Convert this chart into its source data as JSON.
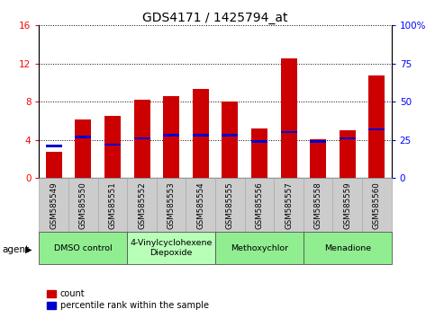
{
  "title": "GDS4171 / 1425794_at",
  "samples": [
    "GSM585549",
    "GSM585550",
    "GSM585551",
    "GSM585552",
    "GSM585553",
    "GSM585554",
    "GSM585555",
    "GSM585556",
    "GSM585557",
    "GSM585558",
    "GSM585559",
    "GSM585560"
  ],
  "count_values": [
    2.8,
    6.1,
    6.5,
    8.2,
    8.6,
    9.3,
    8.0,
    5.2,
    12.5,
    4.1,
    5.0,
    10.8
  ],
  "percentile_values": [
    21,
    27,
    22,
    26,
    28,
    28,
    28,
    24,
    30,
    24,
    26,
    32
  ],
  "ylim_left": [
    0,
    16
  ],
  "ylim_right": [
    0,
    100
  ],
  "yticks_left": [
    0,
    4,
    8,
    12,
    16
  ],
  "yticks_right": [
    0,
    25,
    50,
    75,
    100
  ],
  "ytick_labels_right": [
    "0",
    "25",
    "50",
    "75",
    "100%"
  ],
  "bar_color": "#cc0000",
  "pct_color": "#0000cc",
  "agents": [
    {
      "label": "DMSO control",
      "start": 0,
      "end": 3,
      "color": "#90ee90"
    },
    {
      "label": "4-Vinylcyclohexene\nDiepoxide",
      "start": 3,
      "end": 6,
      "color": "#b8ffb8"
    },
    {
      "label": "Methoxychlor",
      "start": 6,
      "end": 9,
      "color": "#90ee90"
    },
    {
      "label": "Menadione",
      "start": 9,
      "end": 12,
      "color": "#90ee90"
    }
  ],
  "agent_label": "agent",
  "legend_count_label": "count",
  "legend_pct_label": "percentile rank within the sample",
  "sample_bg": "#cccccc",
  "plot_bg": "#ffffff",
  "title_fontsize": 10,
  "tick_fontsize": 7.5,
  "bar_width": 0.55
}
